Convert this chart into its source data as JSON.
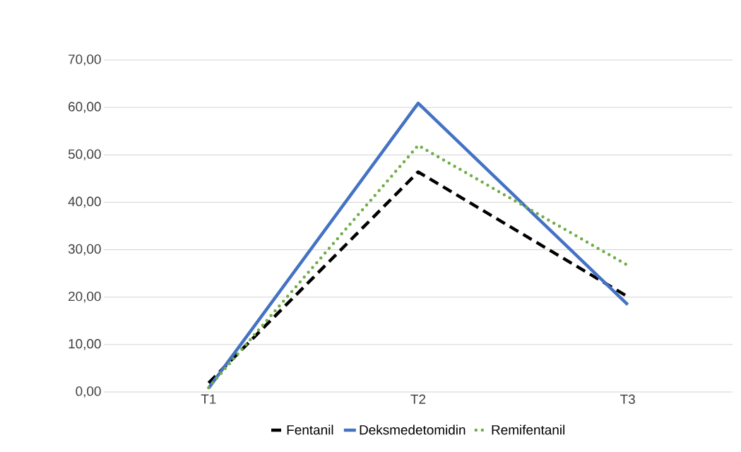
{
  "chart_data": {
    "type": "line",
    "categories": [
      "T1",
      "T2",
      "T3"
    ],
    "series": [
      {
        "name": "Fentanil",
        "color": "#000000",
        "line_style": "dashed",
        "values": [
          1.9,
          46.4,
          20.1
        ]
      },
      {
        "name": "Deksmedetomidin",
        "color": "#4472c4",
        "line_style": "solid",
        "values": [
          0.8,
          60.9,
          18.4
        ]
      },
      {
        "name": "Remifentanil",
        "color": "#70ad47",
        "line_style": "dotted",
        "values": [
          0.9,
          52.0,
          26.7
        ]
      }
    ],
    "ylim": [
      0,
      70
    ],
    "yticks": [
      {
        "value": 0,
        "label": "0,00"
      },
      {
        "value": 10,
        "label": "10,00"
      },
      {
        "value": 20,
        "label": "20,00"
      },
      {
        "value": 30,
        "label": "30,00"
      },
      {
        "value": 40,
        "label": "40,00"
      },
      {
        "value": 50,
        "label": "50,00"
      },
      {
        "value": 60,
        "label": "60,00"
      },
      {
        "value": 70,
        "label": "70,00"
      }
    ],
    "grid": "y",
    "legend": "bottom",
    "marker": "none"
  }
}
